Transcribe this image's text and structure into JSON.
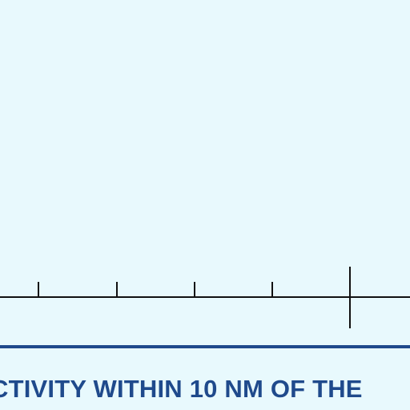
{
  "chart_caption": {
    "text": "CTIVITY WITHIN 10 NM OF THE"
  },
  "colors": {
    "background": "#e8f9fd",
    "scale_line": "#111111",
    "boundary_line": "#1f4a8c",
    "caption_text": "#1f4a8c"
  }
}
